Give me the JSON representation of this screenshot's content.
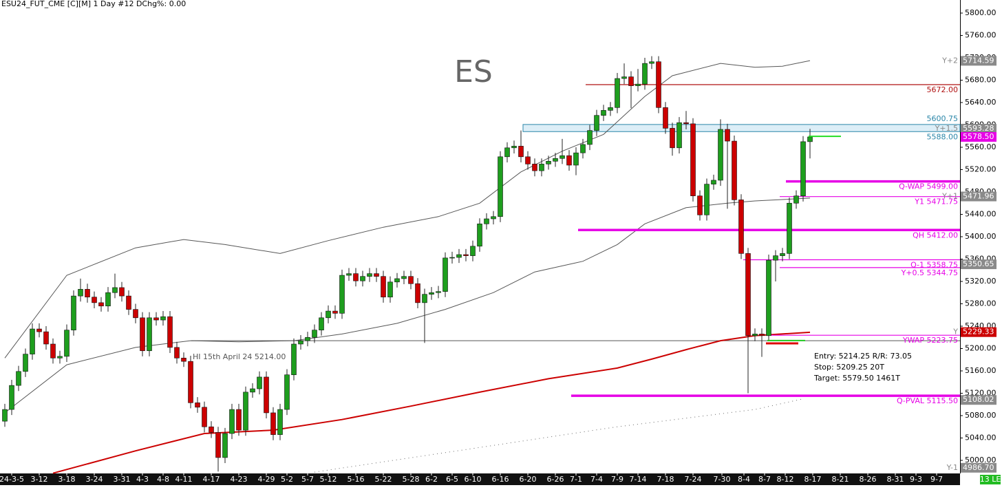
{
  "header": "ESU24_FUT_CME [C][M]  1 Day  #12 DChg%: 0.00",
  "chart_data": {
    "type": "candlestick",
    "title": "ES",
    "up_color": "#1e9e1e",
    "down_color": "#cc0000",
    "x": [
      0,
      1,
      2,
      3,
      4,
      5,
      6,
      7,
      8,
      9,
      10,
      11,
      12,
      13,
      14,
      15,
      16,
      17,
      18,
      19,
      20,
      21,
      22,
      23,
      24,
      25,
      26,
      27,
      28,
      29,
      30,
      31,
      32,
      33,
      34,
      35,
      36,
      37,
      38,
      39,
      40,
      41,
      42,
      43,
      44,
      45,
      46,
      47,
      48,
      49,
      50,
      51,
      52,
      53,
      54,
      55,
      56,
      57,
      58,
      59,
      60,
      61,
      62,
      63,
      64,
      65,
      66,
      67,
      68,
      69,
      70,
      71,
      72,
      73,
      74,
      75,
      76,
      77,
      78,
      79,
      80,
      81,
      82,
      83,
      84,
      85,
      86,
      87,
      88,
      89,
      90,
      91,
      92,
      93,
      94,
      95,
      96,
      97,
      98,
      99,
      100,
      101,
      102,
      103,
      104,
      105,
      106,
      107,
      108,
      109,
      110,
      111,
      112,
      113,
      114,
      115,
      116,
      117
    ],
    "open": [
      5070,
      5091,
      5134,
      5159,
      5190,
      5235,
      5230,
      5208,
      5183,
      5186,
      5233,
      5294,
      5306,
      5292,
      5282,
      5276,
      5300,
      5309,
      5294,
      5270,
      5255,
      5196,
      5255,
      5251,
      5257,
      5202,
      5183,
      5177,
      5103,
      5095,
      5060,
      5050,
      5005,
      5048,
      5091,
      5054,
      5122,
      5128,
      5149,
      5085,
      5046,
      5091,
      5153,
      5208,
      5214,
      5220,
      5233,
      5255,
      5267,
      5263,
      5331,
      5334,
      5321,
      5329,
      5334,
      5329,
      5292,
      5319,
      5325,
      5329,
      5316,
      5282,
      5297,
      5300,
      5302,
      5362,
      5363,
      5368,
      5366,
      5383,
      5423,
      5432,
      5436,
      5543,
      5559,
      5562,
      5543,
      5530,
      5518,
      5530,
      5535,
      5540,
      5545,
      5528,
      5550,
      5565,
      5590,
      5617,
      5626,
      5631,
      5683,
      5686,
      5670,
      5673,
      5710,
      5713,
      5631,
      5594,
      5559,
      5604,
      5602,
      5473,
      5439,
      5494,
      5501,
      5592,
      5571,
      5466,
      5370,
      5223,
      5226,
      5223,
      5358,
      5366,
      5370,
      5460,
      5473,
      5570
    ],
    "high": [
      5101,
      5144,
      5169,
      5200,
      5245,
      5245,
      5240,
      5218,
      5196,
      5243,
      5304,
      5325,
      5316,
      5302,
      5292,
      5310,
      5334,
      5319,
      5304,
      5280,
      5265,
      5265,
      5265,
      5267,
      5267,
      5212,
      5193,
      5187,
      5113,
      5105,
      5070,
      5060,
      5058,
      5101,
      5101,
      5132,
      5138,
      5159,
      5159,
      5095,
      5101,
      5163,
      5218,
      5224,
      5230,
      5243,
      5265,
      5277,
      5277,
      5341,
      5344,
      5344,
      5339,
      5344,
      5344,
      5339,
      5329,
      5335,
      5339,
      5339,
      5326,
      5307,
      5310,
      5312,
      5372,
      5373,
      5378,
      5378,
      5393,
      5433,
      5442,
      5446,
      5553,
      5569,
      5572,
      5590,
      5553,
      5540,
      5540,
      5545,
      5550,
      5575,
      5555,
      5560,
      5575,
      5600,
      5627,
      5636,
      5641,
      5693,
      5710,
      5696,
      5700,
      5720,
      5723,
      5723,
      5641,
      5604,
      5614,
      5625,
      5612,
      5483,
      5504,
      5511,
      5610,
      5602,
      5581,
      5476,
      5380,
      5236,
      5236,
      5368,
      5376,
      5380,
      5470,
      5483,
      5580,
      5593
    ],
    "low": [
      5060,
      5081,
      5124,
      5149,
      5180,
      5220,
      5198,
      5173,
      5173,
      5176,
      5223,
      5284,
      5282,
      5272,
      5266,
      5266,
      5290,
      5284,
      5260,
      5245,
      5186,
      5186,
      5241,
      5241,
      5192,
      5173,
      5167,
      5093,
      5085,
      5050,
      5040,
      4980,
      4995,
      5038,
      5044,
      5044,
      5112,
      5118,
      5075,
      5036,
      5036,
      5081,
      5143,
      5198,
      5204,
      5210,
      5223,
      5245,
      5253,
      5253,
      5321,
      5311,
      5311,
      5319,
      5319,
      5282,
      5282,
      5309,
      5315,
      5306,
      5272,
      5210,
      5287,
      5290,
      5292,
      5352,
      5353,
      5356,
      5356,
      5373,
      5413,
      5422,
      5426,
      5533,
      5549,
      5533,
      5520,
      5508,
      5508,
      5520,
      5525,
      5530,
      5518,
      5510,
      5540,
      5555,
      5580,
      5607,
      5616,
      5621,
      5673,
      5630,
      5660,
      5663,
      5700,
      5621,
      5584,
      5545,
      5549,
      5592,
      5463,
      5429,
      5429,
      5484,
      5491,
      5450,
      5456,
      5360,
      5120,
      5213,
      5185,
      5213,
      5320,
      5356,
      5360,
      5450,
      5463,
      5540
    ],
    "close": [
      5091,
      5134,
      5159,
      5190,
      5235,
      5230,
      5208,
      5183,
      5186,
      5233,
      5294,
      5306,
      5292,
      5282,
      5276,
      5300,
      5309,
      5294,
      5270,
      5255,
      5196,
      5255,
      5251,
      5257,
      5202,
      5183,
      5177,
      5103,
      5095,
      5060,
      5050,
      5005,
      5048,
      5091,
      5054,
      5122,
      5128,
      5149,
      5085,
      5046,
      5091,
      5153,
      5208,
      5214,
      5220,
      5233,
      5255,
      5267,
      5263,
      5331,
      5334,
      5321,
      5329,
      5334,
      5329,
      5292,
      5319,
      5325,
      5329,
      5316,
      5282,
      5297,
      5300,
      5302,
      5362,
      5363,
      5368,
      5366,
      5383,
      5423,
      5432,
      5436,
      5543,
      5559,
      5562,
      5543,
      5530,
      5518,
      5530,
      5535,
      5540,
      5545,
      5528,
      5550,
      5565,
      5590,
      5617,
      5626,
      5631,
      5683,
      5686,
      5670,
      5673,
      5710,
      5713,
      5631,
      5594,
      5559,
      5604,
      5602,
      5473,
      5439,
      5494,
      5501,
      5592,
      5571,
      5466,
      5370,
      5223,
      5226,
      5223,
      5358,
      5366,
      5370,
      5460,
      5473,
      5570,
      5578.5
    ],
    "xlim": [
      -0.7,
      138.8
    ],
    "xticks": [
      {
        "value": 1,
        "label": "24-3-5"
      },
      {
        "value": 5,
        "label": "3-12"
      },
      {
        "value": 9,
        "label": "3-18"
      },
      {
        "value": 13,
        "label": "3-24"
      },
      {
        "value": 17,
        "label": "3-31"
      },
      {
        "value": 20,
        "label": "4-3"
      },
      {
        "value": 23,
        "label": "4-8"
      },
      {
        "value": 26,
        "label": "4-11"
      },
      {
        "value": 30,
        "label": "4-17"
      },
      {
        "value": 34,
        "label": "4-23"
      },
      {
        "value": 38,
        "label": "4-29"
      },
      {
        "value": 41,
        "label": "5-2"
      },
      {
        "value": 44,
        "label": "5-7"
      },
      {
        "value": 47,
        "label": "5-12"
      },
      {
        "value": 51,
        "label": "5-16"
      },
      {
        "value": 55,
        "label": "5-22"
      },
      {
        "value": 59,
        "label": "5-28"
      },
      {
        "value": 62,
        "label": "6-2"
      },
      {
        "value": 65,
        "label": "6-5"
      },
      {
        "value": 68,
        "label": "6-10"
      },
      {
        "value": 72,
        "label": "6-16"
      },
      {
        "value": 76,
        "label": "6-20"
      },
      {
        "value": 80,
        "label": "6-26"
      },
      {
        "value": 83,
        "label": "7-1"
      },
      {
        "value": 86,
        "label": "7-4"
      },
      {
        "value": 89,
        "label": "7-9"
      },
      {
        "value": 92,
        "label": "7-14"
      },
      {
        "value": 96,
        "label": "7-18"
      },
      {
        "value": 100,
        "label": "7-24"
      },
      {
        "value": 104.2,
        "label": "7-30"
      },
      {
        "value": 107.4,
        "label": "8-4"
      },
      {
        "value": 110.4,
        "label": "8-7"
      },
      {
        "value": 113.4,
        "label": "8-12"
      },
      {
        "value": 117.4,
        "label": "8-17"
      },
      {
        "value": 121.4,
        "label": "8-21"
      },
      {
        "value": 125.4,
        "label": "8-26"
      },
      {
        "value": 129.4,
        "label": "8-31"
      },
      {
        "value": 132.4,
        "label": "9-3"
      },
      {
        "value": 135.4,
        "label": "9-7"
      }
    ],
    "ylim": [
      4976.6,
      5823.4
    ],
    "yticks": [
      {
        "value": 5000,
        "label": "5000.00"
      },
      {
        "value": 5040,
        "label": "5040.00"
      },
      {
        "value": 5080,
        "label": "5080.00"
      },
      {
        "value": 5120,
        "label": "5120.00"
      },
      {
        "value": 5160,
        "label": "5160.00"
      },
      {
        "value": 5200,
        "label": "5200.00"
      },
      {
        "value": 5240,
        "label": "5240.00"
      },
      {
        "value": 5280,
        "label": "5280.00"
      },
      {
        "value": 5320,
        "label": "5320.00"
      },
      {
        "value": 5360,
        "label": "5360.00"
      },
      {
        "value": 5400,
        "label": "5400.00"
      },
      {
        "value": 5440,
        "label": "5440.00"
      },
      {
        "value": 5480,
        "label": "5480.00"
      },
      {
        "value": 5520,
        "label": "5520.00"
      },
      {
        "value": 5560,
        "label": "5560.00"
      },
      {
        "value": 5600,
        "label": "5600.00"
      },
      {
        "value": 5640,
        "label": "5640.00"
      },
      {
        "value": 5680,
        "label": "5680.00"
      },
      {
        "value": 5720,
        "label": "5720.00"
      },
      {
        "value": 5760,
        "label": "5760.00"
      },
      {
        "value": 5800,
        "label": "5800.00"
      }
    ],
    "lines": [
      {
        "color": "#555555",
        "style": "solid",
        "x": [
          0,
          9,
          19,
          26,
          32,
          40,
          47,
          55,
          63,
          69,
          75,
          81,
          87,
          93,
          97,
          104,
          109,
          113,
          117
        ],
        "values": [
          5183,
          5331,
          5380,
          5395,
          5386,
          5370,
          5393,
          5417,
          5436,
          5460,
          5516,
          5553,
          5583,
          5651,
          5688,
          5710,
          5703,
          5705,
          5715
        ]
      },
      {
        "color": "#555555",
        "style": "solid",
        "x": [
          0,
          9,
          19,
          27,
          34,
          42,
          49,
          57,
          64,
          71,
          77,
          84,
          89,
          93,
          99,
          105,
          109,
          117
        ],
        "values": [
          5085,
          5171,
          5202,
          5214,
          5212,
          5214,
          5226,
          5245,
          5270,
          5300,
          5337,
          5356,
          5386,
          5423,
          5452,
          5460,
          5464,
          5469
        ]
      },
      {
        "color": "#cc0000",
        "style": "thick",
        "x": [
          7,
          19,
          29,
          39,
          49,
          59,
          69,
          79,
          89,
          94,
          99,
          104,
          109,
          117
        ],
        "values": [
          4977,
          5017,
          5048,
          5054,
          5073,
          5097,
          5122,
          5146,
          5165,
          5181,
          5198,
          5214,
          5223,
          5229
        ]
      },
      {
        "color": "#666666",
        "style": "dotted",
        "x": [
          45,
          69,
          89,
          109,
          116
        ],
        "values": [
          4979,
          5023,
          5060,
          5091,
          5110
        ]
      }
    ],
    "zone": {
      "values": [
        5588,
        5600.75
      ],
      "labels": [
        "5588.00",
        "5600.75"
      ],
      "color": "#2a86a8",
      "start": 75.3
    },
    "levels": [
      {
        "label": "5672.00",
        "value": 5672,
        "color": "#b01010",
        "start": 84.4,
        "style": "thin"
      },
      {
        "label": "Q-WAP 5499.00",
        "value": 5499,
        "color": "#e600e6",
        "start": 113.5,
        "style": "thick"
      },
      {
        "label": "Y1 5471.75",
        "value": 5471.75,
        "color": "#e600e6",
        "start": 112.6,
        "style": "thin"
      },
      {
        "label": "QH 5412.00",
        "value": 5412,
        "color": "#e600e6",
        "start": 83.3,
        "style": "thick"
      },
      {
        "label": "Q-1 5358.75",
        "value": 5358.75,
        "color": "#e600e6",
        "start": 107.3,
        "style": "thin"
      },
      {
        "label": "Y+0.5 5344.75",
        "value": 5344.75,
        "color": "#e600e6",
        "start": 112.6,
        "style": "thin"
      },
      {
        "label": "YWAP 5223.75",
        "value": 5223.75,
        "color": "#e600e6",
        "start": 110.6,
        "style": "thin"
      },
      {
        "label": "Q-PVAL 5115.50",
        "value": 5115.5,
        "color": "#e600e6",
        "start": 82.3,
        "style": "thick"
      }
    ],
    "reference": {
      "label": "HI 15th April 24 5214.00",
      "value": 5214,
      "start": 27.1,
      "color": "#555555"
    },
    "trade": {
      "text": [
        "Entry: 5214.25  R/R: 73.05",
        "Stop: 5209.25  20T",
        "Target: 5579.50  1461T"
      ],
      "entry": 5214.25,
      "stop": 5209.25,
      "target": 5579.5
    },
    "price_tags": [
      {
        "name": "Y+2",
        "value": 5714.59,
        "color": "#8a8a8a"
      },
      {
        "name": "Y+1.5",
        "value": 5593.28,
        "color": "#8a8a8a"
      },
      {
        "value": 5578.5,
        "label": "5578.50",
        "color": "#e600e6"
      },
      {
        "name": "Y+1",
        "value": 5471.96,
        "color": "#8a8a8a"
      },
      {
        "value": 5350.65,
        "color": "#8a8a8a"
      },
      {
        "name": "Y",
        "value": 5229.33,
        "color": "#cc0000"
      },
      {
        "value": 5108.02,
        "color": "#8a8a8a"
      },
      {
        "name": "Y-1",
        "value": 4986.7,
        "label": "4986.70",
        "color": "#8a8a8a"
      }
    ],
    "badge": "13 LE"
  }
}
